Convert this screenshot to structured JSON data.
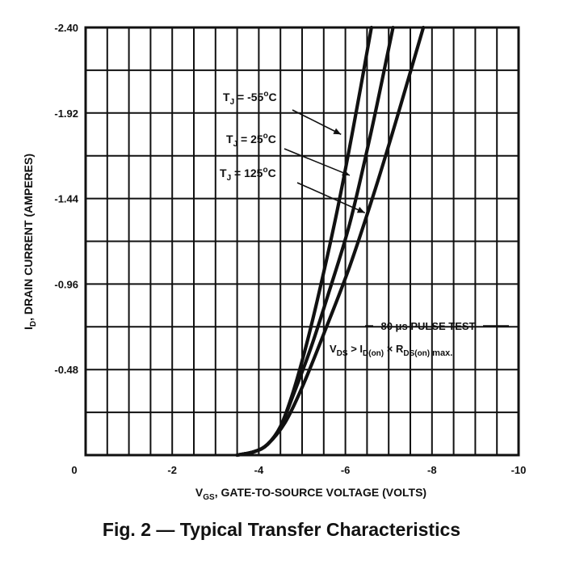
{
  "figure": {
    "caption": "Fig. 2 — Typical Transfer Characteristics"
  },
  "chart_data": {
    "type": "line",
    "xlabel_main": "V",
    "xlabel_sub": "GS",
    "xlabel_rest": ", GATE-TO-SOURCE VOLTAGE (VOLTS)",
    "ylabel_main": "I",
    "ylabel_sub": "D",
    "ylabel_rest": ", DRAIN CURRENT (AMPERES)",
    "xlim": [
      0,
      -10
    ],
    "ylim": [
      0,
      -2.4
    ],
    "x_ticks": [
      0,
      -2,
      -4,
      -6,
      -8,
      -10
    ],
    "x_tick_labels": [
      "0",
      "-2",
      "-4",
      "-6",
      "-8",
      "-10"
    ],
    "y_ticks": [
      -0.48,
      -0.96,
      -1.44,
      -1.92,
      -2.4
    ],
    "y_tick_labels": [
      "-0.48",
      "-0.96",
      "-1.44",
      "-1.92",
      "-2.40"
    ],
    "grid": true,
    "note_line1": "80 μs PULSE TEST",
    "note_line2": {
      "v": "V",
      "v_sub": "DS",
      "op": " > I",
      "i_sub": "D(on)",
      "mult": " × R",
      "r_sub": "DS(on)",
      "tail": " max."
    },
    "series": [
      {
        "name": "-55°C",
        "label": {
          "t": "T",
          "sub": "J",
          "eq": " = -55",
          "deg": "o",
          "unit": "C"
        },
        "x": [
          -3.5,
          -3.9,
          -4.2,
          -4.5,
          -4.8,
          -5.1,
          -5.4,
          -5.8,
          -6.2,
          -6.6
        ],
        "y": [
          0,
          -0.02,
          -0.06,
          -0.16,
          -0.36,
          -0.62,
          -0.92,
          -1.36,
          -1.86,
          -2.4
        ]
      },
      {
        "name": "25°C",
        "label": {
          "t": "T",
          "sub": "J",
          "eq": " = 25",
          "deg": "o",
          "unit": "C"
        },
        "x": [
          -3.5,
          -3.9,
          -4.2,
          -4.5,
          -4.8,
          -5.2,
          -5.6,
          -6.1,
          -6.6,
          -7.1
        ],
        "y": [
          0,
          -0.02,
          -0.06,
          -0.16,
          -0.34,
          -0.6,
          -0.9,
          -1.3,
          -1.82,
          -2.4
        ]
      },
      {
        "name": "125°C",
        "label": {
          "t": "T",
          "sub": "J",
          "eq": " = 125",
          "deg": "o",
          "unit": "C"
        },
        "x": [
          -3.5,
          -3.9,
          -4.2,
          -4.6,
          -5.0,
          -5.5,
          -6.1,
          -6.7,
          -7.2,
          -7.8
        ],
        "y": [
          0,
          -0.02,
          -0.06,
          -0.18,
          -0.38,
          -0.68,
          -1.06,
          -1.5,
          -1.9,
          -2.4
        ]
      }
    ]
  }
}
